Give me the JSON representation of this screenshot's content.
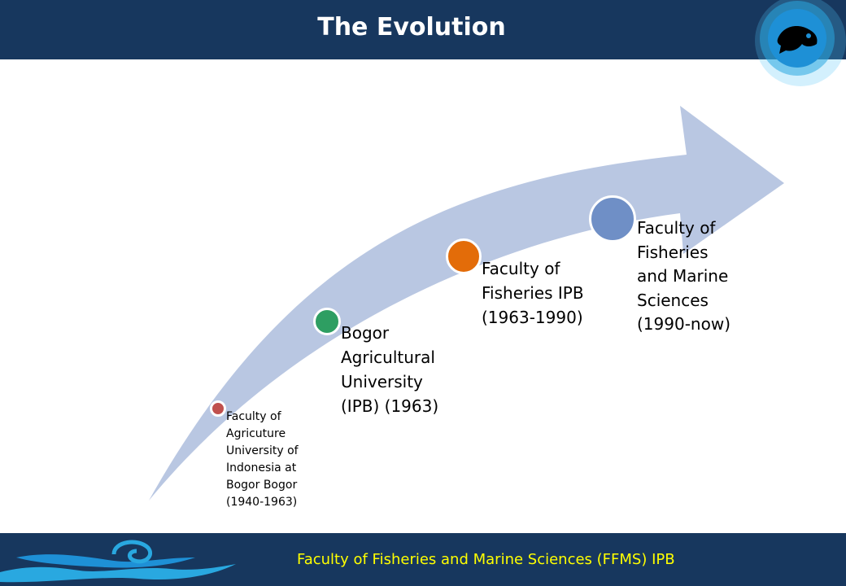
{
  "slide": {
    "title": "The Evolution",
    "footer_text": "Faculty of Fisheries and Marine Sciences (FFMS) IPB"
  },
  "milestones": [
    {
      "label": "Faculty of\nAgricuture\nUniversity of\nIndonesia at\nBogor Bogor\n(1940-1963)",
      "color": "#c0504d"
    },
    {
      "label": "Bogor\nAgricultural\nUniversity\n(IPB) (1963)",
      "color": "#2e9e62"
    },
    {
      "label": "Faculty of\nFisheries IPB\n(1963-1990)",
      "color": "#e36c09"
    },
    {
      "label": "Faculty of\nFisheries\nand Marine\nSciences\n(1990-now)",
      "color": "#6f8fc6"
    }
  ],
  "colors": {
    "header_bg": "#17375e",
    "arrow_fill": "#b9c7e2",
    "footer_text": "#ffff00"
  },
  "icons": {
    "logo": "fish-logo-icon",
    "footer_decoration": "wave-swirl-icon"
  }
}
